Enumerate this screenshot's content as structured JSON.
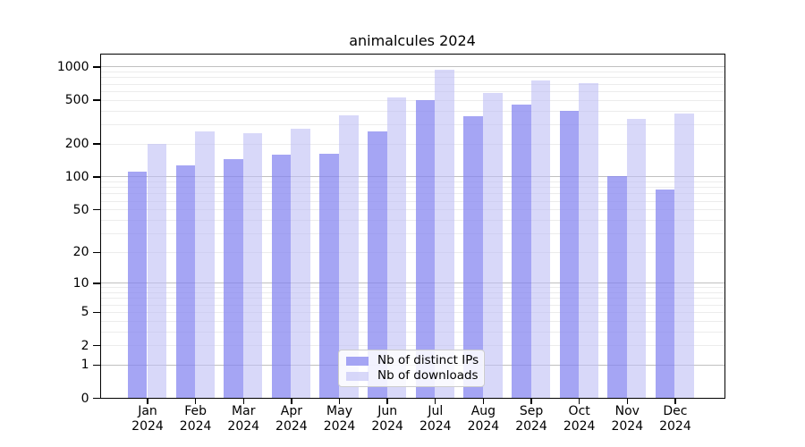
{
  "title": "animalcules 2024",
  "palette": {
    "distinct_ips_bar_hex": "#a5a5f4",
    "downloads_bar_hex": "#d8d8f9",
    "major_gridline_hex": "#c0c0c0",
    "minor_gridline_hex": "#ececec",
    "axis_box_hex": "#000000",
    "legend_border_hex": "#cccccc"
  },
  "chart_data": {
    "type": "bar",
    "title": "animalcules 2024",
    "xlabel": "",
    "ylabel": "",
    "yscale": "log1p",
    "grid": true,
    "legend_position": "inside-bottom-center",
    "categories": [
      "Jan 2024",
      "Feb 2024",
      "Mar 2024",
      "Apr 2024",
      "May 2024",
      "Jun 2024",
      "Jul 2024",
      "Aug 2024",
      "Sep 2024",
      "Oct 2024",
      "Nov 2024",
      "Dec 2024"
    ],
    "series": [
      {
        "name": "Nb of distinct IPs",
        "color": "rgba(130,130,240,0.72)",
        "values": [
          110,
          127,
          143,
          158,
          162,
          260,
          500,
          355,
          450,
          395,
          100,
          76
        ]
      },
      {
        "name": "Nb of downloads",
        "color": "rgba(190,190,245,0.60)",
        "values": [
          197,
          260,
          250,
          272,
          363,
          520,
          935,
          578,
          750,
          705,
          332,
          377
        ]
      }
    ],
    "y_ticks": [
      0,
      1,
      2,
      5,
      10,
      20,
      50,
      100,
      200,
      500,
      1000
    ],
    "y_major_gridlines": [
      1,
      10,
      100,
      1000
    ],
    "y_minor_gridlines": [
      2,
      3,
      4,
      5,
      6,
      7,
      8,
      9,
      20,
      30,
      40,
      50,
      60,
      70,
      80,
      90,
      200,
      300,
      400,
      500,
      600,
      700,
      800,
      900
    ],
    "ylim": [
      0,
      1285
    ]
  }
}
